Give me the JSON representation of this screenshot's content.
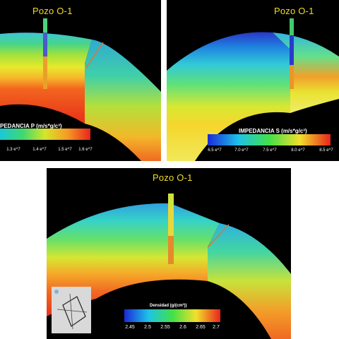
{
  "panels": {
    "impedancia_p": {
      "well_label": "Pozo O-1",
      "colorbar_title": "PEDANCIA P (m/s*g/c³)",
      "ticks": [
        "1.3 e^7",
        "1.4 e^7",
        "1.5 e^7",
        "1.6 e^7"
      ]
    },
    "impedancia_s": {
      "well_label": "Pozo O-1",
      "colorbar_title": "IMPEDANCIA S (m/s*g/c³)",
      "ticks": [
        "6.5 e^7",
        "7.0 e^7",
        "7.5 e^7",
        "8.0 e^7",
        "8.5 e^7"
      ]
    },
    "densidad": {
      "well_label": "Pozo O-1",
      "colorbar_title": "Densidad (g/(cm³))",
      "ticks": [
        "2.45",
        "2.5",
        "2.55",
        "2.6",
        "2.65",
        "2.7"
      ]
    }
  },
  "colors": {
    "background": "#000000",
    "well_label": "#f2dc2a"
  }
}
